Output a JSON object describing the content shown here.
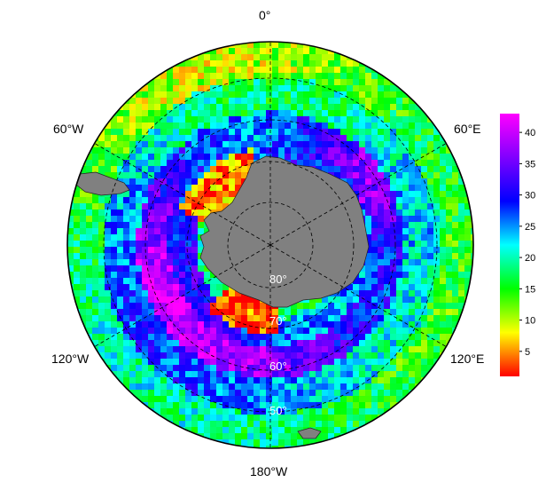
{
  "map": {
    "projection": "south-polar-stereographic",
    "longitude_labels": {
      "top": "0°",
      "upper_left": "60°W",
      "upper_right": "60°E",
      "lower_left": "120°W",
      "lower_right": "120°E",
      "bottom": "180°W"
    },
    "latitude_labels": [
      "80°",
      "70°",
      "60°",
      "50°"
    ],
    "land_color": "#808080",
    "graticule": "dashed"
  },
  "colorbar": {
    "min": 1,
    "max": 43,
    "ticks": [
      "5",
      "10",
      "15",
      "20",
      "25",
      "30",
      "35",
      "40"
    ],
    "colors": [
      "#ff0000",
      "#ffff00",
      "#00ff00",
      "#00ffff",
      "#0000ff",
      "#8000ff",
      "#ff00ff"
    ]
  }
}
